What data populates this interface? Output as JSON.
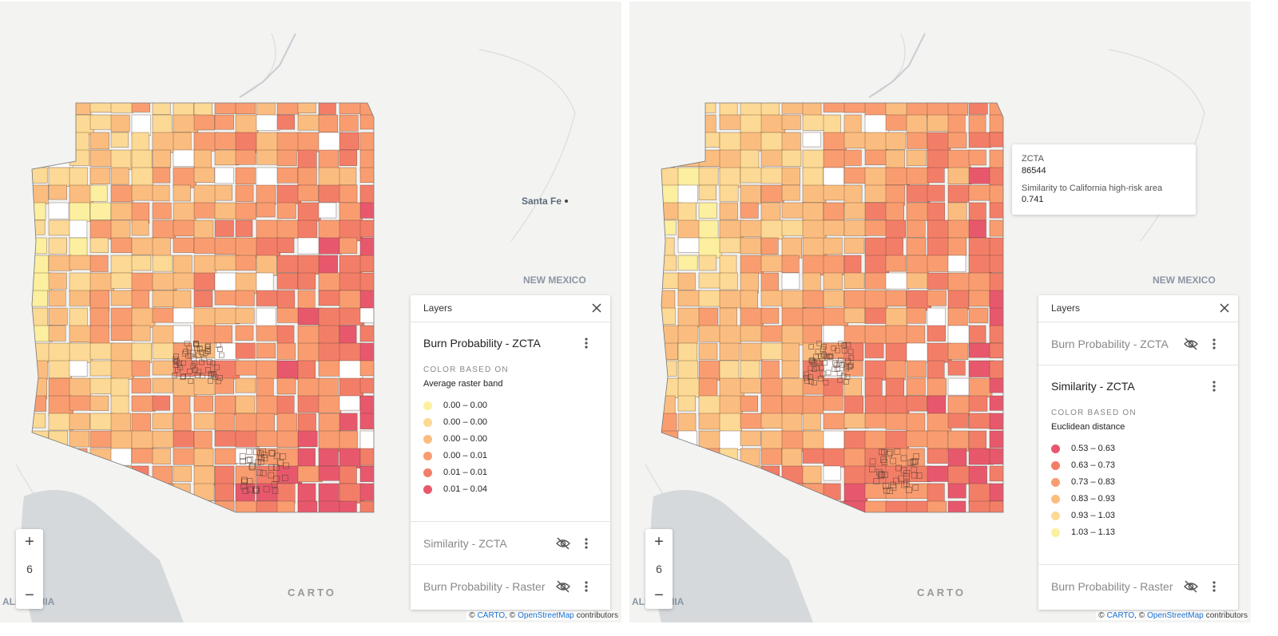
{
  "panels": [
    {
      "map_labels": {
        "city": "Santa Fe",
        "state": "NEW MEXICO",
        "state_edge": "ALIFORNIA"
      },
      "zoom": {
        "zoom_in": "+",
        "level": "6",
        "zoom_out": "−"
      },
      "logo": "CARTO",
      "attribution": [
        "©",
        "CARTO",
        ", ©",
        "OpenStreetMap",
        "contributors"
      ],
      "layers_panel": {
        "title": "Layers",
        "layers": [
          {
            "name": "Burn Probability - ZCTA",
            "hidden": false,
            "color_based_on": "COLOR BASED ON",
            "attribute": "Average raster band",
            "legend": [
              {
                "label": "0.00 – 0.00",
                "color": "#fcef9f"
              },
              {
                "label": "0.00 – 0.00",
                "color": "#fcd994"
              },
              {
                "label": "0.00 – 0.00",
                "color": "#fbbd7f"
              },
              {
                "label": "0.00 – 0.01",
                "color": "#f99d70"
              },
              {
                "label": "0.01 – 0.01",
                "color": "#f37e68"
              },
              {
                "label": "0.01 – 0.04",
                "color": "#e8586c"
              }
            ]
          },
          {
            "name": "Similarity - ZCTA",
            "hidden": true
          },
          {
            "name": "Burn Probability - Raster",
            "hidden": true
          }
        ]
      }
    },
    {
      "map_labels": {
        "state": "NEW MEXICO",
        "state_edge": "ALIFORNIA"
      },
      "zoom": {
        "zoom_in": "+",
        "level": "6",
        "zoom_out": "−"
      },
      "logo": "CARTO",
      "attribution": [
        "©",
        "CARTO",
        ", ©",
        "OpenStreetMap",
        "contributors"
      ],
      "tooltip": {
        "id_label": "ZCTA",
        "id_value": "86544",
        "metric_label": "Similarity to California high-risk area",
        "metric_value": "0.741"
      },
      "layers_panel": {
        "title": "Layers",
        "layers": [
          {
            "name": "Burn Probability - ZCTA",
            "hidden": true
          },
          {
            "name": "Similarity - ZCTA",
            "hidden": false,
            "color_based_on": "COLOR BASED ON",
            "attribute": "Euclidean distance",
            "legend": [
              {
                "label": "0.53 – 0.63",
                "color": "#e8586c"
              },
              {
                "label": "0.63 – 0.73",
                "color": "#f37e68"
              },
              {
                "label": "0.73 – 0.83",
                "color": "#f99d70"
              },
              {
                "label": "0.83 – 0.93",
                "color": "#fbbd7f"
              },
              {
                "label": "0.93 – 1.03",
                "color": "#fcd994"
              },
              {
                "label": "1.03 – 1.13",
                "color": "#fcef9f"
              }
            ]
          },
          {
            "name": "Burn Probability - Raster",
            "hidden": true
          }
        ]
      }
    }
  ]
}
